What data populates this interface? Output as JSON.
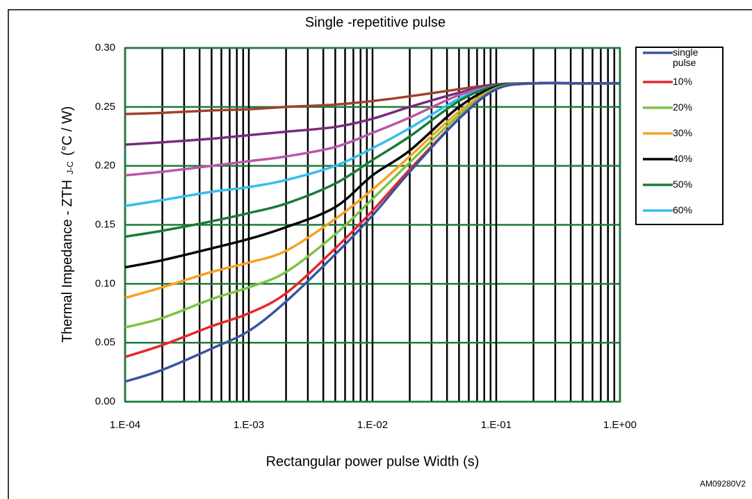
{
  "chart_data": {
    "type": "line",
    "title": "Single -repetitive pulse",
    "x_label": "Rectangular power pulse Width (s)",
    "y_label": "Thermal Impedance    - ZTH",
    "y_label_sub": "J-C",
    "y_label_unit": "(°C / W)",
    "footnote": "AM09280V2",
    "xscale": "log",
    "grid": true,
    "legend": "right",
    "x": [
      0.0001,
      0.0002,
      0.0005,
      0.001,
      0.002,
      0.005,
      0.01,
      0.02,
      0.05,
      0.1,
      0.2,
      0.5,
      1
    ],
    "xlim": [
      0.0001,
      1
    ],
    "xticks": [
      {
        "value": 0.0001,
        "label": "1.E-04"
      },
      {
        "value": 0.001,
        "label": "1.E-03"
      },
      {
        "value": 0.01,
        "label": "1.E-02"
      },
      {
        "value": 0.1,
        "label": "1.E-01"
      },
      {
        "value": 1,
        "label": "1.E+00"
      }
    ],
    "ylim": [
      0,
      0.3
    ],
    "yticks": [
      {
        "value": 0,
        "label": "0.00"
      },
      0.05,
      {
        "value": 0.1,
        "label": "0.10"
      },
      0.15,
      {
        "value": 0.2,
        "label": "0.20"
      },
      0.25,
      {
        "value": 0.3,
        "label": "0.30"
      }
    ],
    "series": [
      {
        "name": "single pulse",
        "color": "#3a53a4",
        "values": [
          0.017,
          0.027,
          0.045,
          0.06,
          0.085,
          0.125,
          0.158,
          0.195,
          0.24,
          0.265,
          0.27,
          0.27,
          0.27
        ]
      },
      {
        "name": "10%",
        "color": "#e8262b",
        "values": [
          0.038,
          0.048,
          0.064,
          0.075,
          0.092,
          0.13,
          0.162,
          0.197,
          0.24,
          0.265,
          0.27,
          0.27,
          0.27
        ]
      },
      {
        "name": "20%",
        "color": "#7dc242",
        "values": [
          0.063,
          0.071,
          0.087,
          0.097,
          0.11,
          0.142,
          0.172,
          0.203,
          0.243,
          0.266,
          0.27,
          0.27,
          0.27
        ]
      },
      {
        "name": "30%",
        "color": "#f6a21e",
        "values": [
          0.088,
          0.097,
          0.11,
          0.118,
          0.128,
          0.155,
          0.18,
          0.208,
          0.246,
          0.266,
          0.27,
          0.27,
          0.27
        ]
      },
      {
        "name": "40%",
        "color": "#000000",
        "values": [
          0.114,
          0.12,
          0.13,
          0.138,
          0.148,
          0.165,
          0.192,
          0.213,
          0.25,
          0.267,
          0.27,
          0.27,
          0.27
        ]
      },
      {
        "name": "50%",
        "color": "#1b7a3a",
        "values": [
          0.14,
          0.145,
          0.153,
          0.16,
          0.168,
          0.185,
          0.205,
          0.225,
          0.255,
          0.268,
          0.27,
          0.27,
          0.27
        ]
      },
      {
        "name": "60%",
        "color": "#35bdee",
        "values": [
          0.166,
          0.171,
          0.178,
          0.182,
          0.188,
          0.2,
          0.215,
          0.232,
          0.257,
          0.268,
          0.27,
          0.27,
          0.27
        ]
      },
      {
        "color": "#bb56a8",
        "values": [
          0.192,
          0.195,
          0.2,
          0.204,
          0.208,
          0.216,
          0.228,
          0.241,
          0.26,
          0.268,
          0.27,
          0.27,
          0.27
        ]
      },
      {
        "color": "#7a2a7e",
        "values": [
          0.218,
          0.22,
          0.223,
          0.226,
          0.229,
          0.233,
          0.24,
          0.25,
          0.262,
          0.269,
          0.27,
          0.27,
          0.27
        ]
      },
      {
        "color": "#a0412d",
        "values": [
          0.244,
          0.245,
          0.247,
          0.248,
          0.25,
          0.252,
          0.255,
          0.259,
          0.265,
          0.269,
          0.27,
          0.27,
          0.27
        ]
      }
    ]
  }
}
